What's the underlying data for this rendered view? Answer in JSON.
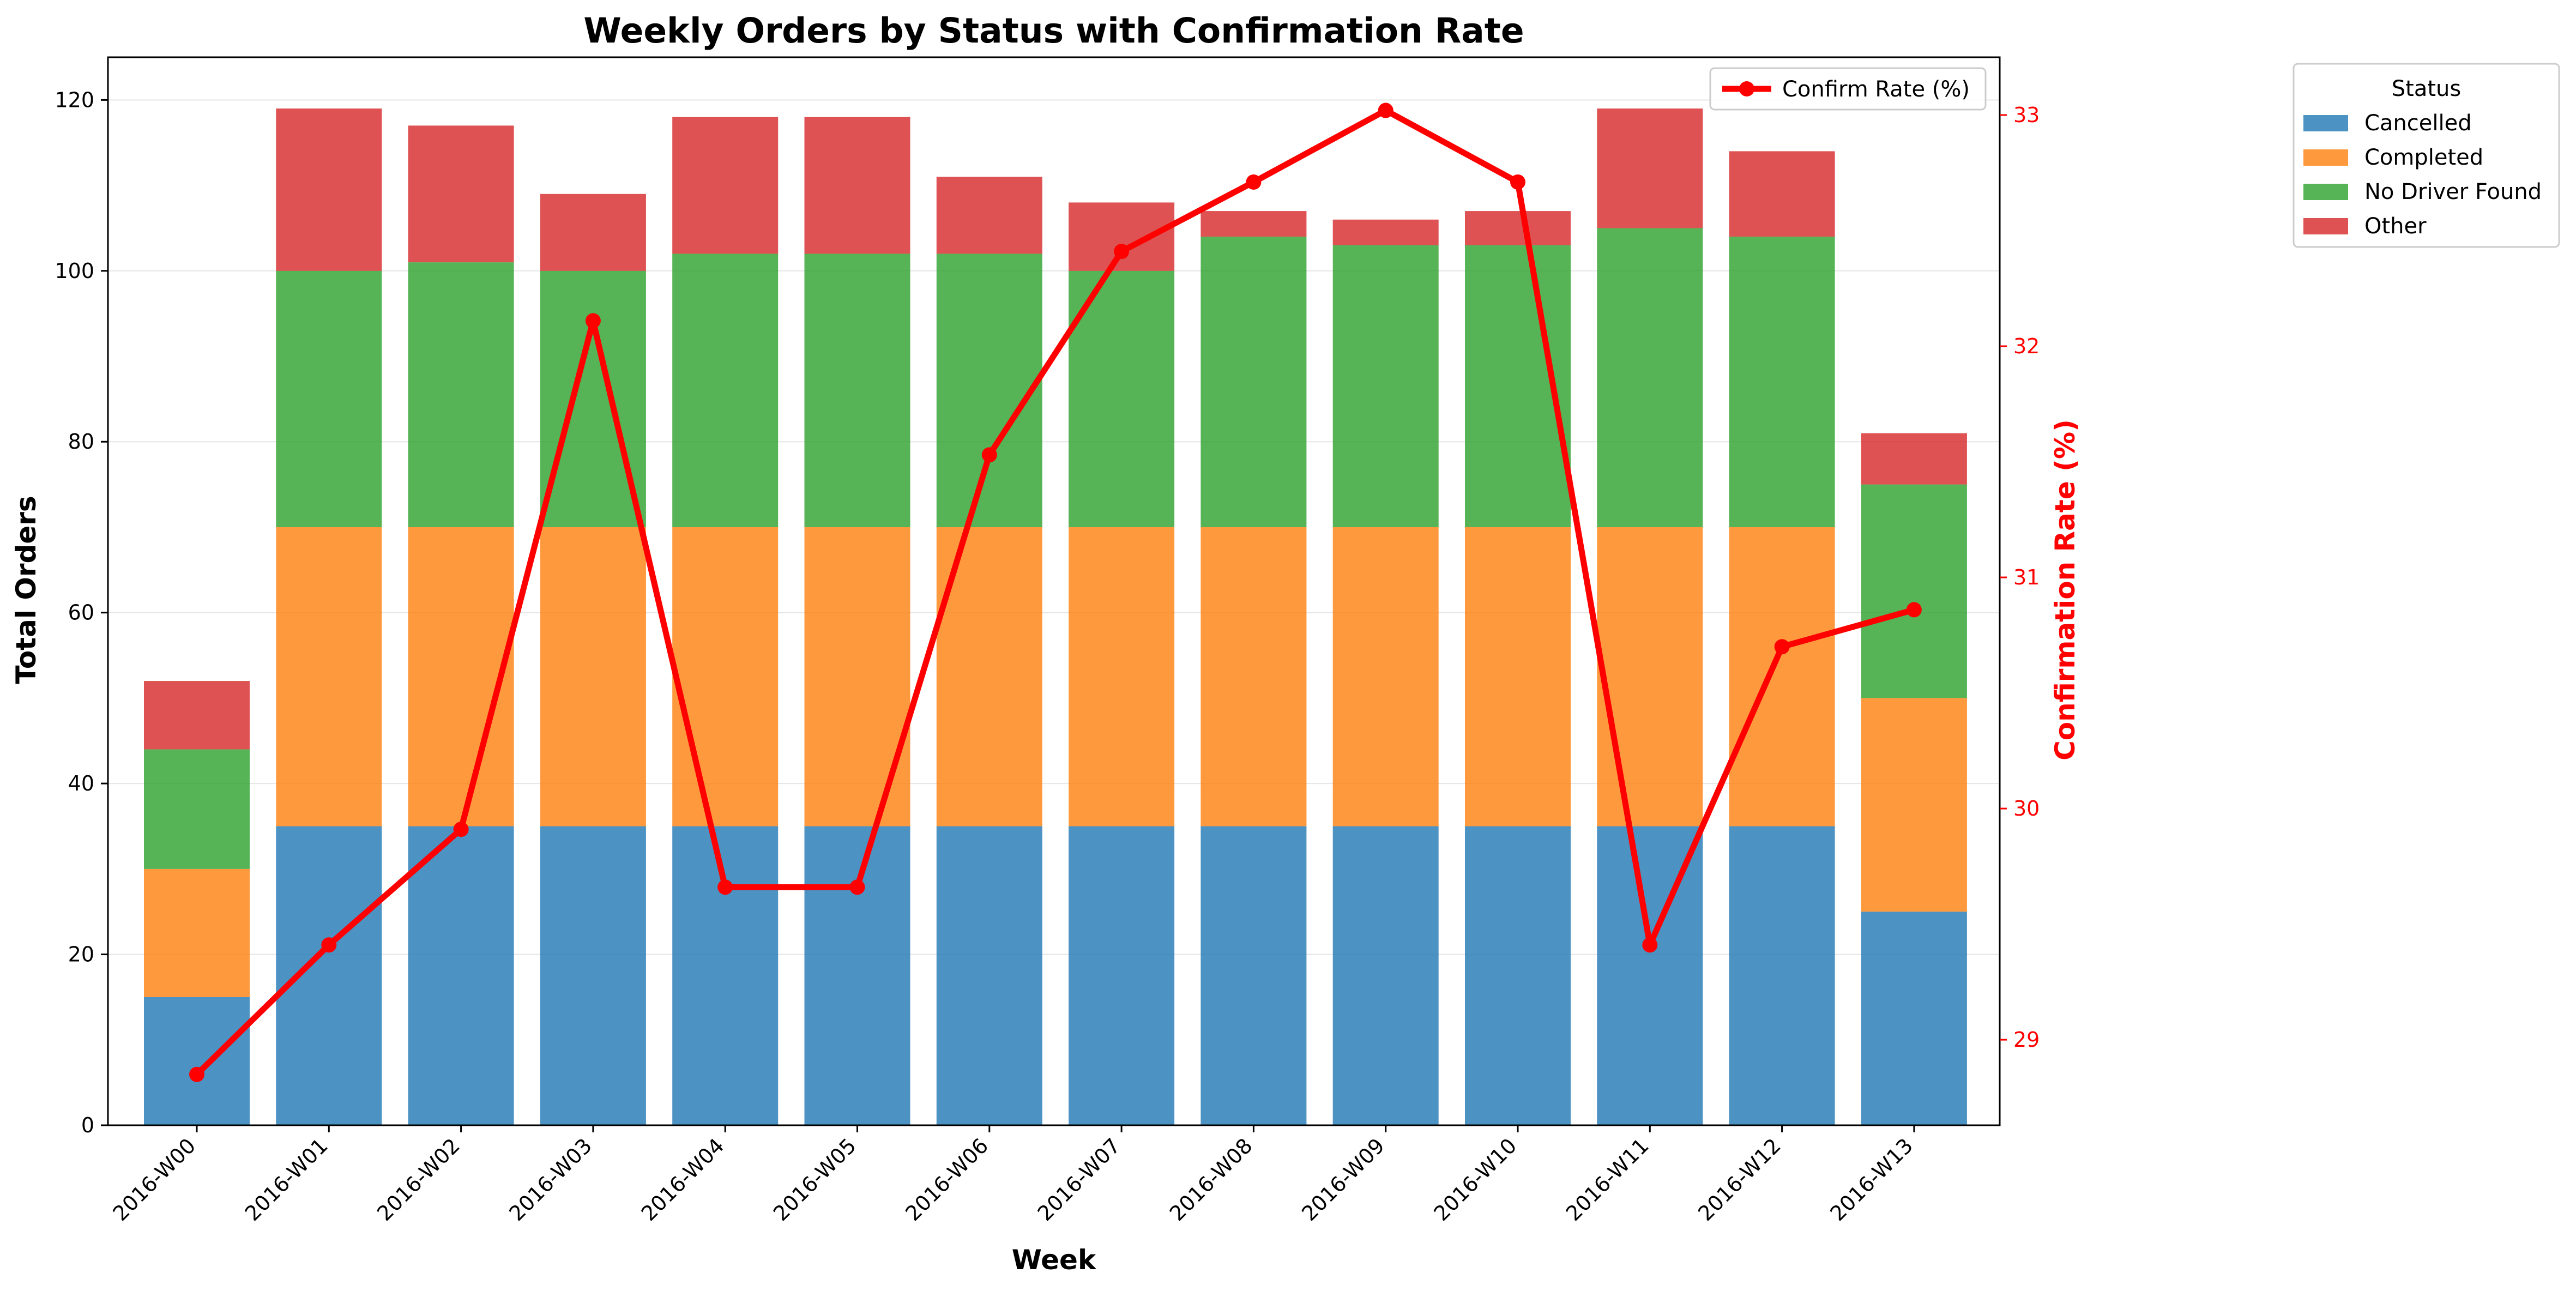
{
  "chart_data": {
    "type": "bar",
    "stacked": true,
    "title": "Weekly Orders by Status with Confirmation Rate",
    "xlabel": "Week",
    "ylabel": "Total Orders",
    "y2label": "Confirmation Rate (%)",
    "ylim": [
      0,
      125
    ],
    "y2lim": [
      28.63,
      33.25
    ],
    "yticks": [
      0,
      20,
      40,
      60,
      80,
      100,
      120
    ],
    "y2ticks": [
      29,
      30,
      31,
      32,
      33
    ],
    "grid": true,
    "categories": [
      "2016-W00",
      "2016-W01",
      "2016-W02",
      "2016-W03",
      "2016-W04",
      "2016-W05",
      "2016-W06",
      "2016-W07",
      "2016-W08",
      "2016-W09",
      "2016-W10",
      "2016-W11",
      "2016-W12",
      "2016-W13"
    ],
    "legend": {
      "title": "Status",
      "placement": "outside-right"
    },
    "line_legend_placement": "top-right",
    "series": [
      {
        "name": "Cancelled",
        "color": "#1f77b4",
        "values": [
          15,
          35,
          35,
          35,
          35,
          35,
          35,
          35,
          35,
          35,
          35,
          35,
          35,
          25
        ]
      },
      {
        "name": "Completed",
        "color": "#ff7f0e",
        "values": [
          15,
          35,
          35,
          35,
          35,
          35,
          35,
          35,
          35,
          35,
          35,
          35,
          35,
          25
        ]
      },
      {
        "name": "No Driver Found",
        "color": "#2ca02c",
        "values": [
          14,
          30,
          31,
          30,
          32,
          32,
          32,
          30,
          34,
          33,
          33,
          35,
          34,
          25
        ]
      },
      {
        "name": "Other",
        "color": "#d62728",
        "values": [
          8,
          19,
          16,
          9,
          16,
          16,
          9,
          8,
          3,
          3,
          4,
          14,
          10,
          6
        ]
      }
    ],
    "line_series": {
      "name": "Confirm Rate (%)",
      "color": "#ff0000",
      "axis": "right",
      "values": [
        28.85,
        29.41,
        29.91,
        32.11,
        29.66,
        29.66,
        31.53,
        32.41,
        32.71,
        33.02,
        32.71,
        29.41,
        30.7,
        30.86
      ]
    }
  }
}
